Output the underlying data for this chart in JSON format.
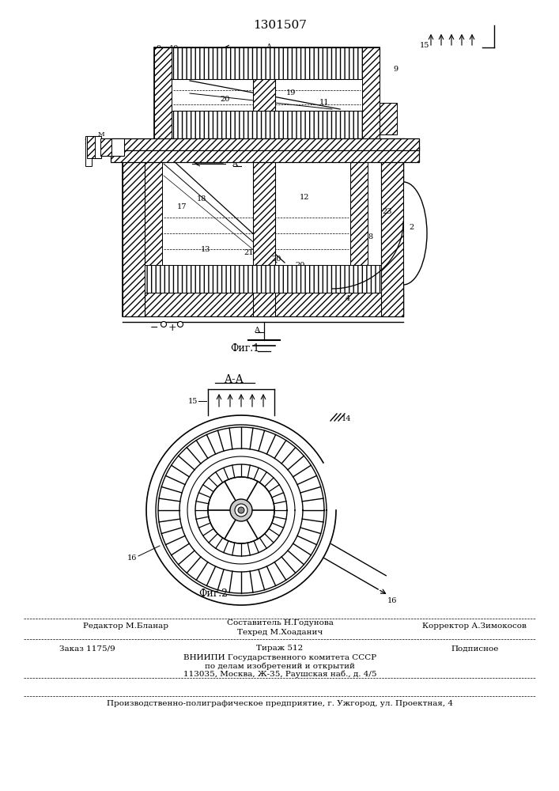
{
  "title": "1301507",
  "fig1_caption": "Фиг.1",
  "fig2_caption": "Фиг.2",
  "aa_label": "A-A",
  "bg_color": "#ffffff",
  "line_color": "#000000"
}
